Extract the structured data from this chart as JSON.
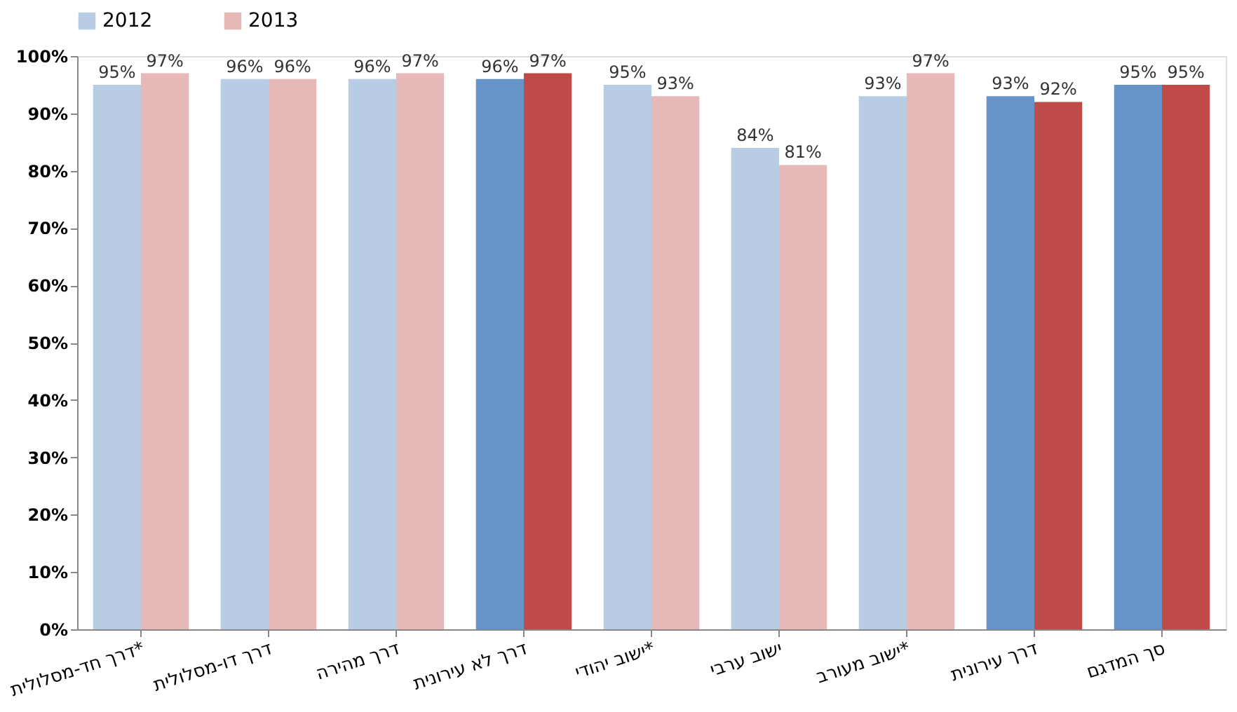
{
  "chart_data": {
    "type": "bar",
    "categories": [
      "דרך חד-מסלולית*",
      "דרך דו-מסלולית",
      "דרך מהירה",
      "דרך לא עירונית",
      "ישוב יהודי*",
      "ישוב ערבי",
      "ישוב מעורב*",
      "דרך עירונית",
      "סך המדגם"
    ],
    "series": [
      {
        "name": "2012",
        "color": "#b8cce4",
        "colors": [
          "#b8cce4",
          "#b8cce4",
          "#b8cce4",
          "#6694c8",
          "#b8cce4",
          "#b8cce4",
          "#b8cce4",
          "#6694c8",
          "#6694c8"
        ],
        "values": [
          95,
          96,
          96,
          96,
          95,
          84,
          93,
          93,
          95
        ],
        "value_labels": [
          "95%",
          "96%",
          "96%",
          "96%",
          "95%",
          "84%",
          "93%",
          "93%",
          "95%"
        ]
      },
      {
        "name": "2013",
        "color": "#e6b9b8",
        "colors": [
          "#e6b9b8",
          "#e6b9b8",
          "#e6b9b8",
          "#be4b48",
          "#e6b9b8",
          "#e6b9b8",
          "#e6b9b8",
          "#be4b48",
          "#be4b48"
        ],
        "values": [
          97,
          96,
          97,
          97,
          93,
          81,
          97,
          92,
          95
        ],
        "value_labels": [
          "97%",
          "96%",
          "97%",
          "97%",
          "93%",
          "81%",
          "97%",
          "92%",
          "95%"
        ]
      }
    ],
    "ylim": [
      0,
      100
    ],
    "yticks": [
      {
        "value": 0,
        "label": "0%"
      },
      {
        "value": 10,
        "label": "10%"
      },
      {
        "value": 20,
        "label": "20%"
      },
      {
        "value": 30,
        "label": "30%"
      },
      {
        "value": 40,
        "label": "40%"
      },
      {
        "value": 50,
        "label": "50%"
      },
      {
        "value": 60,
        "label": "60%"
      },
      {
        "value": 70,
        "label": "70%"
      },
      {
        "value": 80,
        "label": "80%"
      },
      {
        "value": 90,
        "label": "90%"
      },
      {
        "value": 100,
        "label": "100%"
      }
    ],
    "grid": false,
    "legend": "top"
  }
}
